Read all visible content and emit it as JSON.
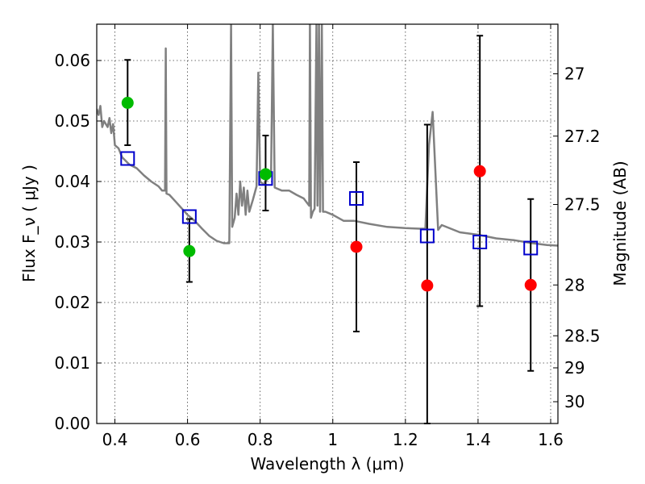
{
  "chart_data": {
    "type": "scatter",
    "xlabel": "Wavelength  λ (μm)",
    "ylabel": "Flux  F_ν  ( μJy )",
    "ylabel_right": "Magnitude (AB)",
    "xlim": [
      0.35,
      1.62
    ],
    "ylim": [
      0.0,
      0.066
    ],
    "grid": true,
    "x_ticks": [
      0.4,
      0.6,
      0.8,
      1.0,
      1.2,
      1.4,
      1.6
    ],
    "x_tick_labels": [
      "0.4",
      "0.6",
      "0.8",
      "1",
      "1.2",
      "1.4",
      "1.6"
    ],
    "y_ticks": [
      0.0,
      0.01,
      0.02,
      0.03,
      0.04,
      0.05,
      0.06
    ],
    "y_tick_labels": [
      "0.00",
      "0.01",
      "0.02",
      "0.03",
      "0.04",
      "0.05",
      "0.06"
    ],
    "right_ticks": [
      {
        "label": "27",
        "flux": 0.0578
      },
      {
        "label": "27.2",
        "flux": 0.0475
      },
      {
        "label": "27.5",
        "flux": 0.0362
      },
      {
        "label": "28",
        "flux": 0.0229
      },
      {
        "label": "28.5",
        "flux": 0.0145
      },
      {
        "label": "29",
        "flux": 0.0092
      },
      {
        "label": "30",
        "flux": 0.0036
      }
    ],
    "series": [
      {
        "style": "line",
        "color": "#808080",
        "points": [
          [
            0.35,
            0.052
          ],
          [
            0.355,
            0.051
          ],
          [
            0.36,
            0.0525
          ],
          [
            0.365,
            0.049
          ],
          [
            0.37,
            0.05
          ],
          [
            0.375,
            0.0495
          ],
          [
            0.38,
            0.049
          ],
          [
            0.385,
            0.0505
          ],
          [
            0.39,
            0.048
          ],
          [
            0.395,
            0.0495
          ],
          [
            0.4,
            0.046
          ],
          [
            0.41,
            0.0455
          ],
          [
            0.42,
            0.044
          ],
          [
            0.44,
            0.0428
          ],
          [
            0.46,
            0.0422
          ],
          [
            0.48,
            0.041
          ],
          [
            0.5,
            0.04
          ],
          [
            0.52,
            0.0392
          ],
          [
            0.53,
            0.0385
          ],
          [
            0.538,
            0.0385
          ],
          [
            0.54,
            0.062
          ],
          [
            0.542,
            0.038
          ],
          [
            0.55,
            0.0378
          ],
          [
            0.57,
            0.0365
          ],
          [
            0.6,
            0.0345
          ],
          [
            0.62,
            0.0335
          ],
          [
            0.64,
            0.0322
          ],
          [
            0.66,
            0.031
          ],
          [
            0.68,
            0.0302
          ],
          [
            0.7,
            0.0298
          ],
          [
            0.715,
            0.0298
          ],
          [
            0.72,
            0.066
          ],
          [
            0.723,
            0.0325
          ],
          [
            0.73,
            0.034
          ],
          [
            0.735,
            0.038
          ],
          [
            0.74,
            0.0345
          ],
          [
            0.745,
            0.04
          ],
          [
            0.75,
            0.036
          ],
          [
            0.755,
            0.039
          ],
          [
            0.76,
            0.0345
          ],
          [
            0.765,
            0.0385
          ],
          [
            0.77,
            0.035
          ],
          [
            0.78,
            0.037
          ],
          [
            0.79,
            0.0392
          ],
          [
            0.795,
            0.058
          ],
          [
            0.8,
            0.04
          ],
          [
            0.81,
            0.0395
          ],
          [
            0.82,
            0.0405
          ],
          [
            0.83,
            0.041
          ],
          [
            0.835,
            0.066
          ],
          [
            0.84,
            0.039
          ],
          [
            0.86,
            0.0385
          ],
          [
            0.88,
            0.0385
          ],
          [
            0.9,
            0.0378
          ],
          [
            0.92,
            0.0372
          ],
          [
            0.935,
            0.036
          ],
          [
            0.937,
            0.066
          ],
          [
            0.94,
            0.034
          ],
          [
            0.945,
            0.035
          ],
          [
            0.95,
            0.0355
          ],
          [
            0.955,
            0.066
          ],
          [
            0.958,
            0.036
          ],
          [
            0.962,
            0.066
          ],
          [
            0.965,
            0.035
          ],
          [
            0.97,
            0.066
          ],
          [
            0.973,
            0.035
          ],
          [
            0.98,
            0.035
          ],
          [
            1.0,
            0.0345
          ],
          [
            1.03,
            0.0335
          ],
          [
            1.06,
            0.0335
          ],
          [
            1.1,
            0.033
          ],
          [
            1.15,
            0.0325
          ],
          [
            1.2,
            0.0323
          ],
          [
            1.24,
            0.0322
          ],
          [
            1.255,
            0.0322
          ],
          [
            1.265,
            0.046
          ],
          [
            1.275,
            0.0515
          ],
          [
            1.29,
            0.032
          ],
          [
            1.3,
            0.0328
          ],
          [
            1.35,
            0.0316
          ],
          [
            1.4,
            0.0312
          ],
          [
            1.45,
            0.0306
          ],
          [
            1.5,
            0.0303
          ],
          [
            1.55,
            0.0298
          ],
          [
            1.59,
            0.0295
          ],
          [
            1.62,
            0.0294
          ]
        ]
      },
      {
        "style": "open-square",
        "color": "#0000cc",
        "points": [
          [
            0.435,
            0.0438
          ],
          [
            0.605,
            0.0342
          ],
          [
            0.815,
            0.0405
          ],
          [
            1.065,
            0.0372
          ],
          [
            1.26,
            0.031
          ],
          [
            1.405,
            0.03
          ],
          [
            1.545,
            0.029
          ]
        ]
      },
      {
        "style": "filled-circle",
        "color": "#00bb00",
        "points": [
          [
            0.435,
            0.053
          ],
          [
            0.605,
            0.0285
          ],
          [
            0.815,
            0.0412
          ]
        ]
      },
      {
        "style": "filled-circle",
        "color": "#ff0000",
        "points": [
          [
            1.065,
            0.0292
          ],
          [
            1.26,
            0.0228
          ],
          [
            1.405,
            0.0417
          ],
          [
            1.545,
            0.0229
          ]
        ]
      }
    ],
    "error_bars": [
      {
        "x": 0.435,
        "low": 0.046,
        "high": 0.0601
      },
      {
        "x": 0.605,
        "low": 0.0234,
        "high": 0.0338
      },
      {
        "x": 0.815,
        "low": 0.0352,
        "high": 0.0476
      },
      {
        "x": 1.065,
        "low": 0.0152,
        "high": 0.0432
      },
      {
        "x": 1.26,
        "low": 0.0,
        "high": 0.0494
      },
      {
        "x": 1.405,
        "low": 0.0194,
        "high": 0.0641
      },
      {
        "x": 1.545,
        "low": 0.0087,
        "high": 0.0371
      }
    ]
  }
}
